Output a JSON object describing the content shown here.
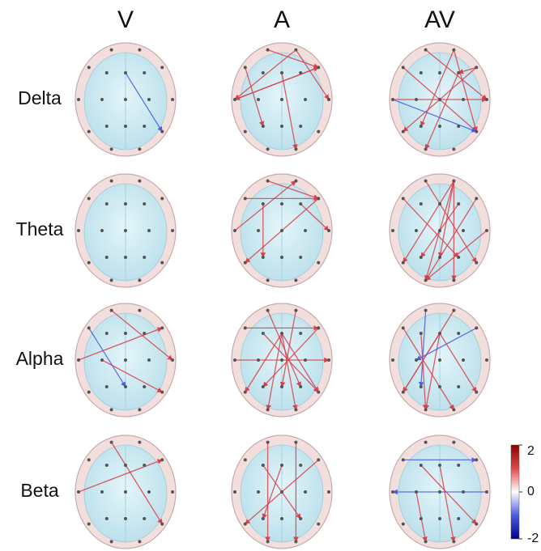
{
  "columns": [
    "V",
    "A",
    "AV"
  ],
  "rows": [
    "Delta",
    "Theta",
    "Alpha",
    "Beta"
  ],
  "colorbar": {
    "range": [
      -2,
      2
    ],
    "ticks": [
      2,
      0,
      -2
    ]
  }
}
